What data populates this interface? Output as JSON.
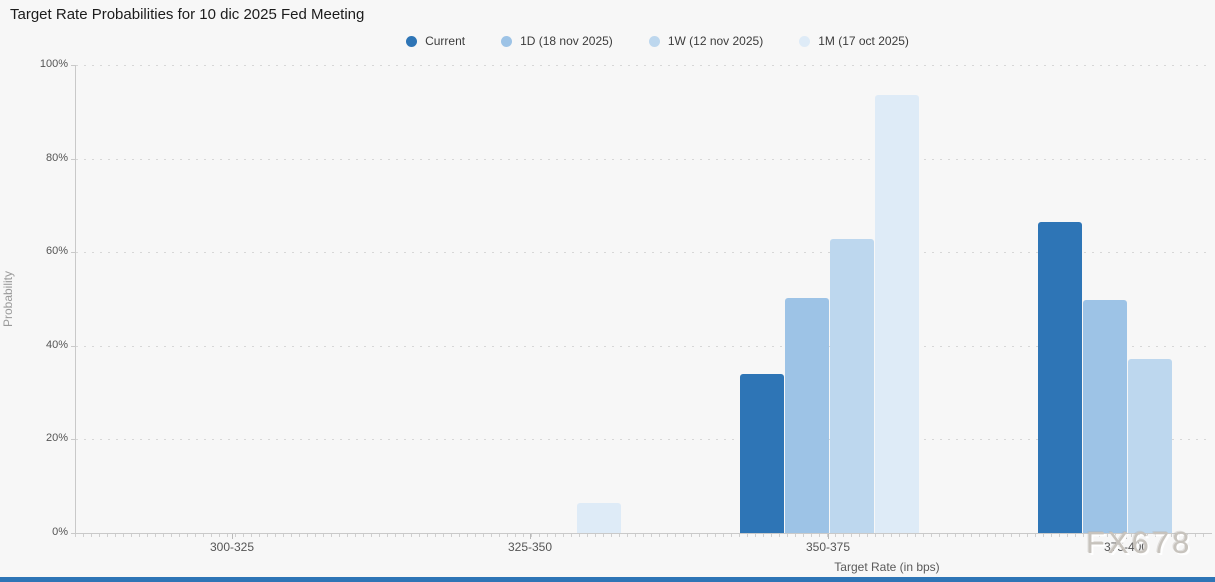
{
  "title": "Target Rate Probabilities for 10 dic 2025 Fed Meeting",
  "watermark": "FX678",
  "colors": {
    "background": "#f7f7f7",
    "bottom_bar": "#2e75b6",
    "series": [
      "#2e75b6",
      "#9dc3e6",
      "#bdd7ee",
      "#deebf7"
    ]
  },
  "chart_data": {
    "type": "bar",
    "title": "Target Rate Probabilities for 10 dic 2025 Fed Meeting",
    "categories": [
      "300-325",
      "325-350",
      "350-375",
      "375-400"
    ],
    "series": [
      {
        "name": "Current",
        "color": "#2e75b6",
        "values": [
          0,
          0,
          33.9,
          66.4
        ]
      },
      {
        "name": "1D (18 nov 2025)",
        "color": "#9dc3e6",
        "values": [
          0,
          0,
          50.3,
          49.7
        ]
      },
      {
        "name": "1W (12 nov 2025)",
        "color": "#bdd7ee",
        "values": [
          0,
          0,
          62.8,
          37.2
        ]
      },
      {
        "name": "1M (17 oct 2025)",
        "color": "#deebf7",
        "values": [
          0,
          6.4,
          93.6,
          0
        ]
      }
    ],
    "xlabel": "Target Rate (in bps)",
    "ylabel": "Probability",
    "ylim": [
      0,
      100
    ],
    "ytick_labels": [
      "0%",
      "20%",
      "40%",
      "60%",
      "80%",
      "100%"
    ],
    "grid": "horizontal-dotted",
    "legend_position": "top-center"
  }
}
